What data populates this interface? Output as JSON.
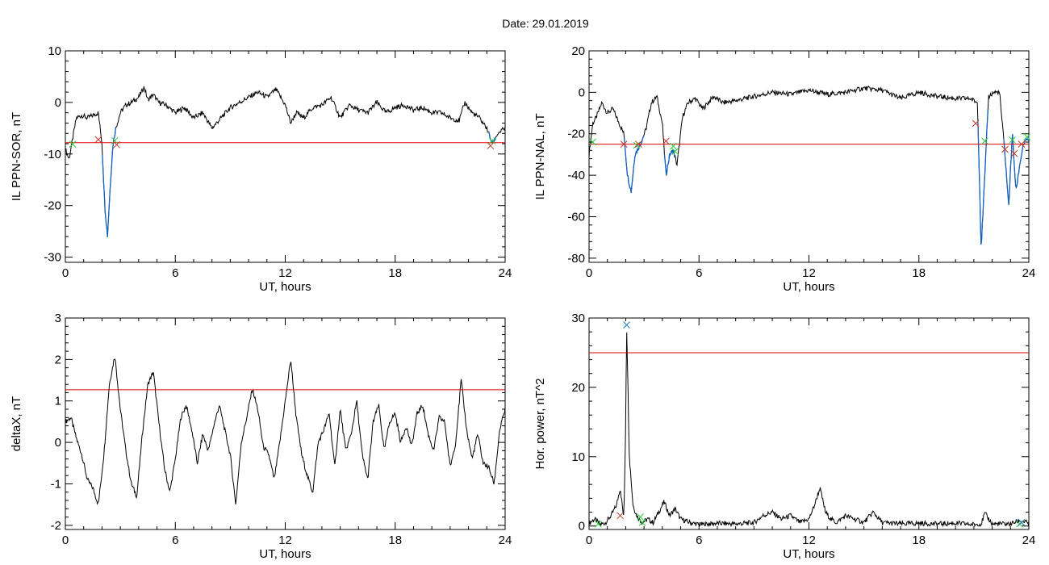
{
  "title": "Date:  29.01.2019",
  "colors": {
    "trace": "#000000",
    "threshold": "#e00000",
    "segment": "#1565c0",
    "marker_start": "#2ecc40",
    "marker_end": "#c0392b",
    "marker_peak": "#1f77b4"
  },
  "chart_data": [
    {
      "type": "line",
      "title": "",
      "xlabel": "UT, hours",
      "ylabel": "IL PPN-SOR, nT",
      "xlim": [
        0,
        24
      ],
      "ylim": [
        -31,
        10
      ],
      "xticks": [
        0,
        6,
        12,
        18,
        24
      ],
      "yticks": [
        -30,
        -20,
        -10,
        0,
        10
      ],
      "threshold": -7.8,
      "x": [
        0,
        0.2,
        0.4,
        0.6,
        0.9,
        1.2,
        1.5,
        1.8,
        2.0,
        2.15,
        2.3,
        2.45,
        2.6,
        2.75,
        3.0,
        3.3,
        3.6,
        4.0,
        4.3,
        4.5,
        4.8,
        5.1,
        5.5,
        6.0,
        6.5,
        7.0,
        7.5,
        8.0,
        8.5,
        9.0,
        9.5,
        10.0,
        10.5,
        11.0,
        11.5,
        12.0,
        12.3,
        12.6,
        13.0,
        13.5,
        14.0,
        14.5,
        15.0,
        15.5,
        16.0,
        16.5,
        17.0,
        17.5,
        18.0,
        18.5,
        19.0,
        19.5,
        20.0,
        20.5,
        21.0,
        21.5,
        21.8,
        22.2,
        22.6,
        23.0,
        23.3,
        23.6,
        24.0
      ],
      "values": [
        -9,
        -11,
        -7,
        -3,
        -2.5,
        -3,
        -2.5,
        -2,
        -8,
        -20,
        -26,
        -16,
        -8,
        -5,
        -2,
        -0.5,
        0,
        1,
        3,
        0.5,
        1.5,
        0,
        -0.5,
        -2,
        -1,
        -3,
        -2,
        -5,
        -3,
        -1,
        0,
        1,
        2,
        1,
        2.5,
        -0.5,
        -4,
        -2,
        -3,
        -1,
        -0.5,
        1,
        -3,
        -0.5,
        -1.5,
        -2,
        0,
        -2,
        -1,
        -0.5,
        -1.5,
        -1,
        -2,
        -2,
        -3,
        -3.5,
        0,
        -2,
        -3,
        -5,
        -8,
        -6,
        -5
      ],
      "segments": [
        [
          2.0,
          2.75
        ],
        [
          23.1,
          23.5
        ]
      ],
      "markers": [
        {
          "x": 0.4,
          "y": -8.1,
          "kind": "start"
        },
        {
          "x": 1.8,
          "y": -7.2,
          "kind": "end"
        },
        {
          "x": 2.7,
          "y": -7.4,
          "kind": "start"
        },
        {
          "x": 2.8,
          "y": -8.2,
          "kind": "end"
        },
        {
          "x": 23.3,
          "y": -7.5,
          "kind": "start"
        },
        {
          "x": 23.2,
          "y": -8.4,
          "kind": "end"
        }
      ]
    },
    {
      "type": "line",
      "title": "",
      "xlabel": "UT, hours",
      "ylabel": "IL PPN-NAL, nT",
      "xlim": [
        0,
        24
      ],
      "ylim": [
        -82,
        20
      ],
      "xticks": [
        0,
        6,
        12,
        18,
        24
      ],
      "yticks": [
        -80,
        -60,
        -40,
        -20,
        0,
        20
      ],
      "threshold": -25,
      "x": [
        0,
        0.2,
        0.4,
        0.7,
        1.0,
        1.3,
        1.6,
        1.9,
        2.1,
        2.3,
        2.5,
        2.8,
        3.1,
        3.4,
        3.7,
        4.0,
        4.2,
        4.4,
        4.6,
        4.8,
        5.1,
        5.4,
        5.8,
        6.2,
        6.8,
        7.3,
        8.0,
        9.0,
        10.0,
        11.0,
        12.0,
        13.0,
        14.0,
        15.0,
        16.0,
        17.0,
        18.0,
        19.0,
        20.0,
        20.8,
        21.2,
        21.4,
        21.6,
        21.8,
        22.1,
        22.4,
        22.7,
        22.9,
        23.1,
        23.3,
        23.5,
        23.7,
        24.0
      ],
      "values": [
        -30,
        -15,
        -12,
        -5,
        -10,
        -8,
        -14,
        -20,
        -40,
        -48,
        -30,
        -25,
        -18,
        -5,
        -2,
        -15,
        -40,
        -30,
        -28,
        -35,
        -12,
        -5,
        -3,
        -8,
        -2,
        -5,
        -4,
        -2,
        0,
        -1,
        1,
        -1,
        0,
        2,
        1,
        -3,
        0,
        -2,
        -3,
        -3,
        -5,
        -75,
        -40,
        -2,
        0,
        0,
        -30,
        -55,
        -20,
        -48,
        -35,
        -25,
        -22
      ],
      "segments": [
        [
          1.9,
          3.0
        ],
        [
          4.1,
          4.7
        ],
        [
          21.2,
          21.8
        ],
        [
          22.6,
          24.0
        ]
      ],
      "markers": [
        {
          "x": 0.2,
          "y": -24,
          "kind": "start"
        },
        {
          "x": 1.9,
          "y": -25,
          "kind": "end"
        },
        {
          "x": 2.6,
          "y": -25.5,
          "kind": "start"
        },
        {
          "x": 2.7,
          "y": -25,
          "kind": "end"
        },
        {
          "x": 4.2,
          "y": -23.5,
          "kind": "end"
        },
        {
          "x": 4.6,
          "y": -26,
          "kind": "start"
        },
        {
          "x": 4.7,
          "y": -28.5,
          "kind": "start"
        },
        {
          "x": 21.1,
          "y": -15,
          "kind": "end"
        },
        {
          "x": 21.6,
          "y": -23.5,
          "kind": "start"
        },
        {
          "x": 22.7,
          "y": -27.5,
          "kind": "end"
        },
        {
          "x": 23.1,
          "y": -23,
          "kind": "start"
        },
        {
          "x": 23.2,
          "y": -29.5,
          "kind": "end"
        },
        {
          "x": 23.6,
          "y": -25,
          "kind": "end"
        },
        {
          "x": 23.9,
          "y": -21.5,
          "kind": "start"
        }
      ]
    },
    {
      "type": "line",
      "title": "",
      "xlabel": "UT, hours",
      "ylabel": "deltaX, nT",
      "xlim": [
        0,
        24
      ],
      "ylim": [
        -2.1,
        3
      ],
      "xticks": [
        0,
        6,
        12,
        18,
        24
      ],
      "yticks": [
        -2,
        -1,
        0,
        1,
        2,
        3
      ],
      "threshold": 1.27,
      "x": [
        0,
        0.3,
        0.6,
        0.9,
        1.2,
        1.5,
        1.8,
        2.1,
        2.4,
        2.7,
        3.0,
        3.3,
        3.6,
        3.9,
        4.2,
        4.5,
        4.8,
        5.1,
        5.4,
        5.7,
        6.0,
        6.3,
        6.6,
        6.9,
        7.2,
        7.5,
        7.8,
        8.1,
        8.4,
        8.7,
        9.0,
        9.3,
        9.6,
        9.9,
        10.2,
        10.5,
        10.8,
        11.1,
        11.4,
        11.7,
        12.0,
        12.3,
        12.6,
        12.9,
        13.2,
        13.5,
        13.8,
        14.1,
        14.4,
        14.7,
        15.0,
        15.3,
        15.6,
        15.9,
        16.2,
        16.5,
        16.8,
        17.1,
        17.4,
        17.7,
        18.0,
        18.3,
        18.6,
        18.9,
        19.2,
        19.5,
        19.8,
        20.1,
        20.4,
        20.7,
        21.0,
        21.3,
        21.6,
        21.9,
        22.2,
        22.5,
        22.8,
        23.1,
        23.4,
        23.7,
        24.0
      ],
      "values": [
        0.5,
        0.6,
        0.1,
        -0.3,
        -0.9,
        -1.1,
        -1.5,
        -0.3,
        1.4,
        2.1,
        0.8,
        -0.2,
        -1.0,
        -1.3,
        0.2,
        1.4,
        1.7,
        0.5,
        -0.6,
        -1.2,
        -0.4,
        0.6,
        0.9,
        0.3,
        -0.5,
        0.2,
        -0.2,
        0.4,
        0.9,
        0.3,
        -0.3,
        -1.5,
        0.0,
        0.6,
        1.3,
        0.8,
        -0.1,
        -0.3,
        -0.9,
        0.0,
        1.0,
        2.0,
        0.6,
        -0.3,
        -0.8,
        -1.2,
        0.0,
        0.3,
        0.7,
        -0.6,
        0.8,
        -0.2,
        0.2,
        1.0,
        -0.3,
        -0.9,
        0.5,
        0.9,
        -0.2,
        0.5,
        0.7,
        0.0,
        0.4,
        -0.1,
        0.7,
        0.9,
        0.2,
        -0.2,
        0.6,
        0.5,
        -0.6,
        0.0,
        1.5,
        0.3,
        -0.4,
        0.2,
        -0.5,
        -0.6,
        -1.0,
        0.3,
        0.8
      ]
    },
    {
      "type": "line",
      "title": "",
      "xlabel": "UT, hours",
      "ylabel": "Hor. power, nT^2",
      "xlim": [
        0,
        24
      ],
      "ylim": [
        -0.5,
        30
      ],
      "xticks": [
        0,
        6,
        12,
        18,
        24
      ],
      "yticks": [
        0,
        10,
        20,
        30
      ],
      "threshold": 25,
      "x": [
        0,
        0.3,
        0.6,
        0.9,
        1.2,
        1.5,
        1.7,
        1.9,
        2.0,
        2.05,
        2.1,
        2.2,
        2.4,
        2.6,
        2.9,
        3.2,
        3.5,
        3.8,
        4.1,
        4.4,
        4.7,
        5.0,
        5.5,
        6.0,
        7.0,
        8.0,
        9.0,
        9.5,
        10.0,
        10.5,
        11.0,
        11.5,
        12.0,
        12.3,
        12.6,
        12.9,
        13.2,
        13.5,
        14.0,
        14.5,
        15.0,
        15.5,
        16.0,
        17.0,
        18.0,
        19.0,
        20.0,
        21.0,
        21.4,
        21.6,
        22.0,
        23.0,
        23.5,
        24.0
      ],
      "values": [
        0.4,
        1.0,
        0.2,
        0.5,
        1.5,
        3.0,
        5.5,
        1.0,
        15.0,
        29.0,
        23.0,
        10.0,
        3.0,
        1.5,
        0.5,
        1.0,
        0.5,
        2.0,
        3.5,
        1.5,
        2.5,
        1.0,
        0.5,
        0.2,
        0.4,
        0.3,
        0.5,
        1.5,
        2.0,
        1.0,
        1.5,
        0.5,
        1.0,
        3.0,
        5.5,
        2.0,
        1.0,
        0.5,
        1.5,
        1.0,
        0.5,
        2.0,
        0.5,
        0.3,
        0.4,
        0.3,
        0.4,
        0.2,
        0.3,
        1.8,
        0.3,
        0.3,
        0.8,
        0.4
      ],
      "markers": [
        {
          "x": 0.5,
          "y": 0.3,
          "kind": "start"
        },
        {
          "x": 1.7,
          "y": 1.5,
          "kind": "end"
        },
        {
          "x": 2.05,
          "y": 29.0,
          "kind": "peak"
        },
        {
          "x": 2.8,
          "y": 1.3,
          "kind": "start"
        },
        {
          "x": 2.9,
          "y": 0.5,
          "kind": "start"
        },
        {
          "x": 23.5,
          "y": 0.3,
          "kind": "start"
        },
        {
          "x": 23.6,
          "y": 0.5,
          "kind": "peak"
        }
      ]
    }
  ]
}
